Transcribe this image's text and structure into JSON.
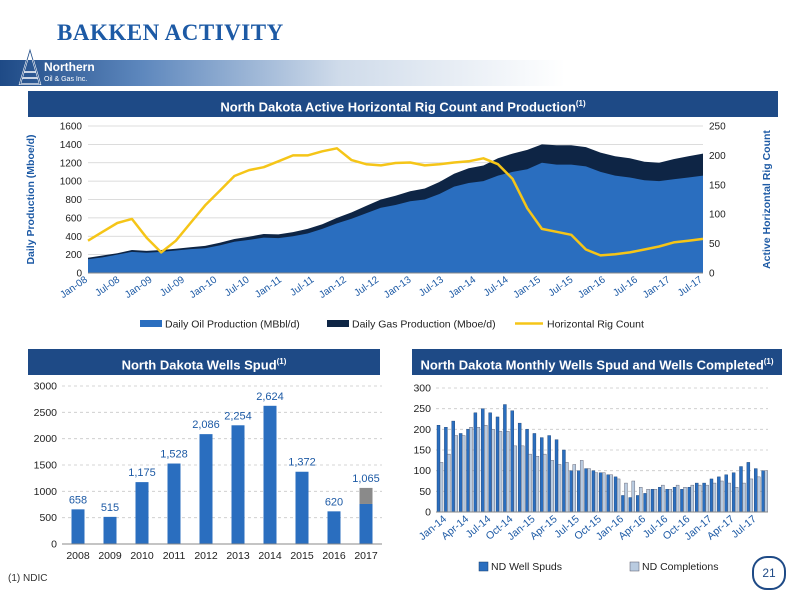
{
  "page": {
    "title": "BAKKEN ACTIVITY",
    "logo_line1": "Northern",
    "logo_line2": "Oil & Gas Inc.",
    "footnote": "(1)   NDIC",
    "page_number": "21",
    "brand_color": "#1d5aa5",
    "banner_color": "#1e4a86"
  },
  "chart_data": [
    {
      "type": "area",
      "title": "North Dakota Active Horizontal Rig Count and Production",
      "title_sup": "(1)",
      "ylabel": "Daily Production (Mboe/d)",
      "y2label": "Active Horizontal Rig Count",
      "ylim": [
        0,
        1600
      ],
      "y2lim": [
        0,
        250
      ],
      "yticks": [
        "0",
        "200",
        "400",
        "600",
        "800",
        "1000",
        "1200",
        "1400",
        "1600"
      ],
      "y2ticks": [
        "0",
        "50",
        "100",
        "150",
        "200",
        "250"
      ],
      "xticks": [
        "Jan-08",
        "Jul-08",
        "Jan-09",
        "Jul-09",
        "Jan-10",
        "Jul-10",
        "Jan-11",
        "Jul-11",
        "Jan-12",
        "Jul-12",
        "Jan-13",
        "Jul-13",
        "Jan-14",
        "Jul-14",
        "Jan-15",
        "Jul-15",
        "Jan-16",
        "Jul-16",
        "Jan-17",
        "Jul-17"
      ],
      "grid": true,
      "legend_position": "bottom",
      "series": [
        {
          "name": "Daily Oil Production (MBbl/d)",
          "type": "area",
          "axis": "left",
          "color": "#2a6ebf",
          "values": [
            150,
            170,
            200,
            230,
            220,
            230,
            245,
            260,
            270,
            300,
            340,
            360,
            385,
            380,
            400,
            430,
            480,
            540,
            590,
            650,
            710,
            740,
            780,
            800,
            860,
            940,
            980,
            1000,
            1060,
            1100,
            1130,
            1200,
            1180,
            1180,
            1160,
            1100,
            1060,
            1040,
            1010,
            1000,
            1020,
            1040,
            1060
          ]
        },
        {
          "name": "Daily Gas Production (Mboe/d)",
          "type": "area",
          "axis": "left",
          "color": "#0e2545",
          "values": [
            165,
            190,
            215,
            250,
            240,
            250,
            265,
            280,
            295,
            330,
            370,
            395,
            425,
            420,
            445,
            480,
            530,
            600,
            660,
            730,
            800,
            840,
            890,
            920,
            990,
            1080,
            1140,
            1170,
            1250,
            1300,
            1340,
            1400,
            1390,
            1390,
            1370,
            1310,
            1270,
            1250,
            1210,
            1200,
            1240,
            1270,
            1300
          ]
        },
        {
          "name": "Horizontal Rig Count",
          "type": "line",
          "axis": "right",
          "color": "#f5c518",
          "values": [
            55,
            70,
            85,
            92,
            60,
            35,
            55,
            85,
            115,
            140,
            165,
            175,
            180,
            190,
            200,
            200,
            207,
            212,
            192,
            185,
            183,
            187,
            188,
            183,
            185,
            188,
            190,
            195,
            185,
            160,
            110,
            75,
            70,
            65,
            40,
            30,
            32,
            35,
            40,
            45,
            52,
            55,
            58
          ]
        }
      ]
    },
    {
      "type": "bar",
      "title": "North Dakota Wells Spud",
      "title_sup": "(1)",
      "categories": [
        "2008",
        "2009",
        "2010",
        "2011",
        "2012",
        "2013",
        "2014",
        "2015",
        "2016",
        "2017"
      ],
      "values": [
        658,
        515,
        1175,
        1528,
        2086,
        2254,
        2624,
        1372,
        620,
        1065
      ],
      "value_labels": [
        "658",
        "515",
        "1,175",
        "1,528",
        "2,086",
        "2,254",
        "2,624",
        "1,372",
        "620",
        "1,065"
      ],
      "stack_2017": {
        "actual": 760,
        "projected": 305
      },
      "ylim": [
        0,
        3000
      ],
      "yticks": [
        "0",
        "500",
        "1000",
        "1500",
        "2000",
        "2500",
        "3000"
      ],
      "grid": true,
      "bar_color": "#2a6ebf",
      "projected_color": "#8a8a8a"
    },
    {
      "type": "bar",
      "title": "North Dakota Monthly Wells Spud and Wells Completed",
      "title_sup": "(1)",
      "ylim": [
        0,
        300
      ],
      "yticks": [
        "0",
        "50",
        "100",
        "150",
        "200",
        "250",
        "300"
      ],
      "xticks": [
        "Jan-14",
        "Apr-14",
        "Jul-14",
        "Oct-14",
        "Jan-15",
        "Apr-15",
        "Jul-15",
        "Oct-15",
        "Jan-16",
        "Apr-16",
        "Jul-16",
        "Oct-16",
        "Jan-17",
        "Apr-17",
        "Jul-17"
      ],
      "legend_position": "bottom",
      "grid": true,
      "series": [
        {
          "name": "ND Well Spuds",
          "color": "#2a6ebf",
          "values": [
            210,
            205,
            220,
            190,
            200,
            240,
            250,
            240,
            230,
            260,
            245,
            215,
            200,
            190,
            180,
            185,
            175,
            150,
            100,
            100,
            105,
            100,
            95,
            90,
            85,
            40,
            35,
            40,
            45,
            55,
            60,
            55,
            60,
            55,
            60,
            70,
            70,
            80,
            85,
            90,
            95,
            110,
            120,
            105,
            100
          ]
        },
        {
          "name": "ND Completions",
          "color": "#b9cbe0",
          "values": [
            120,
            140,
            185,
            185,
            205,
            205,
            210,
            200,
            195,
            195,
            160,
            160,
            140,
            135,
            140,
            125,
            115,
            120,
            115,
            125,
            105,
            95,
            95,
            90,
            80,
            70,
            75,
            60,
            55,
            55,
            65,
            55,
            65,
            60,
            65,
            65,
            65,
            70,
            75,
            70,
            60,
            70,
            80,
            85,
            100
          ]
        }
      ]
    }
  ]
}
